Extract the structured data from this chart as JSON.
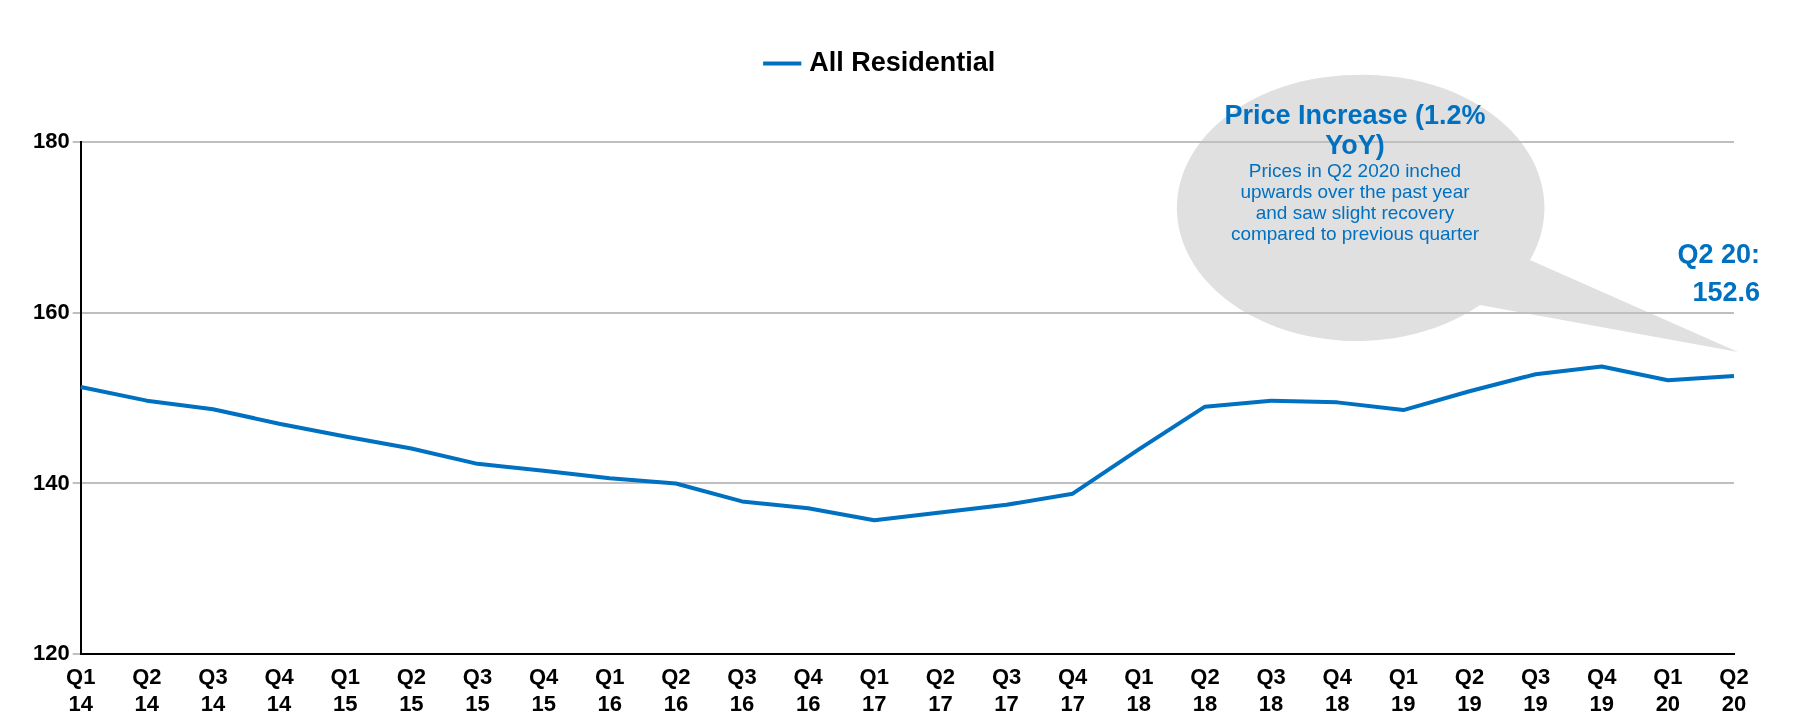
{
  "chart_data": {
    "type": "line",
    "legend": "top",
    "grid": "y",
    "marker": "none",
    "line_style": "solid",
    "categories": [
      "Q1 14",
      "Q2 14",
      "Q3 14",
      "Q4 14",
      "Q1 15",
      "Q2 15",
      "Q3 15",
      "Q4 15",
      "Q1 16",
      "Q2 16",
      "Q3 16",
      "Q4 16",
      "Q1 17",
      "Q2 17",
      "Q3 17",
      "Q4 17",
      "Q1 18",
      "Q2 18",
      "Q3 18",
      "Q4 18",
      "Q1 19",
      "Q2 19",
      "Q3 19",
      "Q4 19",
      "Q1 20",
      "Q2 20"
    ],
    "series": [
      {
        "name": "All Residential",
        "color": "#0070c0",
        "values": [
          151.3,
          149.7,
          148.7,
          147.0,
          145.5,
          144.1,
          142.3,
          141.5,
          140.6,
          140.0,
          137.9,
          137.1,
          135.7,
          136.6,
          137.5,
          138.8,
          144.0,
          149.0,
          149.7,
          149.5,
          148.6,
          150.8,
          152.8,
          153.7,
          152.1,
          152.6
        ]
      }
    ],
    "ylim": [
      120,
      180
    ],
    "yticks": [
      120,
      140,
      160,
      180
    ],
    "annotations": [
      "Price Increase (1.2% YoY)",
      "Prices in Q2 2020 inched upwards over the past year and saw slight recovery compared to previous quarter",
      {
        "text": "Q2 20: 152.6",
        "x": "Q2 20",
        "y": 152.6
      }
    ]
  }
}
